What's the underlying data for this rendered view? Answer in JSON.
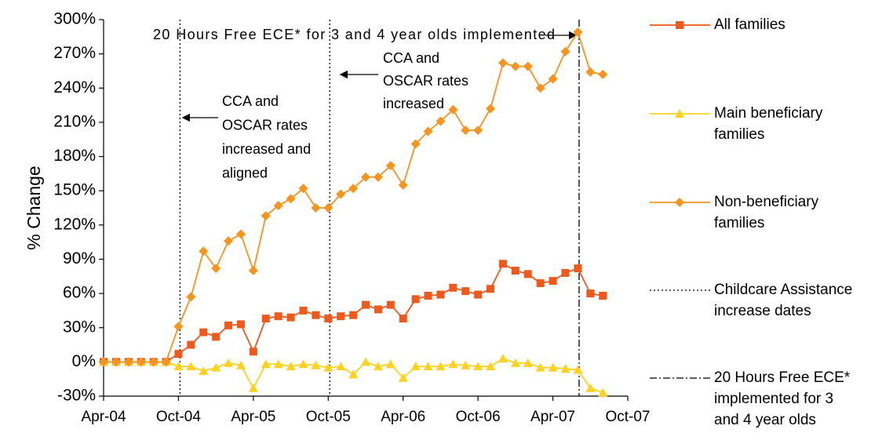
{
  "chart_data": {
    "type": "line",
    "y_axis_label": "% Change",
    "categories": [
      "Apr-04",
      null,
      null,
      null,
      null,
      null,
      "Oct-04",
      null,
      null,
      null,
      null,
      null,
      "Apr-05",
      null,
      null,
      null,
      null,
      null,
      "Oct-05",
      null,
      null,
      null,
      null,
      null,
      "Apr-06",
      null,
      null,
      null,
      null,
      null,
      "Oct-06",
      null,
      null,
      null,
      null,
      null,
      "Apr-07",
      null,
      null,
      null,
      null,
      null,
      "Oct-07"
    ],
    "ylim": [
      -30,
      300
    ],
    "yticks": [
      {
        "value": -30,
        "label": "-30%"
      },
      {
        "value": 0,
        "label": "0%"
      },
      {
        "value": 30,
        "label": "30%"
      },
      {
        "value": 60,
        "label": "60%"
      },
      {
        "value": 90,
        "label": "90%"
      },
      {
        "value": 120,
        "label": "120%"
      },
      {
        "value": 150,
        "label": "150%"
      },
      {
        "value": 180,
        "label": "180%"
      },
      {
        "value": 210,
        "label": "210%"
      },
      {
        "value": 240,
        "label": "240%"
      },
      {
        "value": 270,
        "label": "270%"
      },
      {
        "value": 300,
        "label": "300%"
      }
    ],
    "series": [
      {
        "name": "All families",
        "color": "#ef5a1c",
        "marker": "square",
        "values": [
          0,
          0,
          0,
          0,
          0,
          0,
          7,
          15,
          26,
          22,
          32,
          33,
          9,
          38,
          40,
          39,
          45,
          41,
          38,
          40,
          41,
          50,
          46,
          50,
          38,
          55,
          58,
          59,
          65,
          62,
          59,
          64,
          86,
          80,
          77,
          69,
          71,
          78,
          82,
          60,
          58,
          null,
          null
        ]
      },
      {
        "name": "Main beneficiary families",
        "color": "#ffd21f",
        "marker": "triangle",
        "values": [
          0,
          0,
          0,
          0,
          0,
          0,
          -4,
          -4,
          -8,
          -5,
          -1,
          -3,
          -23,
          -2,
          -2,
          -4,
          -2,
          -3,
          -5,
          -4,
          -11,
          0,
          -4,
          -2,
          -14,
          -4,
          -4,
          -4,
          -2,
          -3,
          -4,
          -4,
          3,
          -1,
          -1,
          -5,
          -5,
          -6,
          -7,
          -23,
          -27,
          null,
          null
        ]
      },
      {
        "name": "Non-beneficiary families",
        "color": "#f7941d",
        "marker": "diamond",
        "values": [
          0,
          0,
          0,
          0,
          0,
          0,
          31,
          57,
          97,
          82,
          106,
          112,
          80,
          128,
          137,
          143,
          152,
          135,
          135,
          147,
          152,
          162,
          162,
          172,
          155,
          191,
          202,
          211,
          221,
          203,
          203,
          222,
          262,
          259,
          259,
          240,
          248,
          272,
          289,
          254,
          252,
          null,
          null
        ]
      }
    ],
    "reference_legend": [
      "Childcare Assistance increase dates",
      "20 Hours Free ECE* implemented for 3 and 4 year olds"
    ],
    "annotations": [
      {
        "lines": [
          "20 Hours Free ECE* for 3 and 4 year olds implemented"
        ]
      },
      {
        "lines": [
          "CCA and",
          "OSCAR rates",
          "increased"
        ]
      },
      {
        "lines": [
          "CCA and",
          "OSCAR rates",
          "increased and",
          "aligned"
        ]
      }
    ]
  }
}
